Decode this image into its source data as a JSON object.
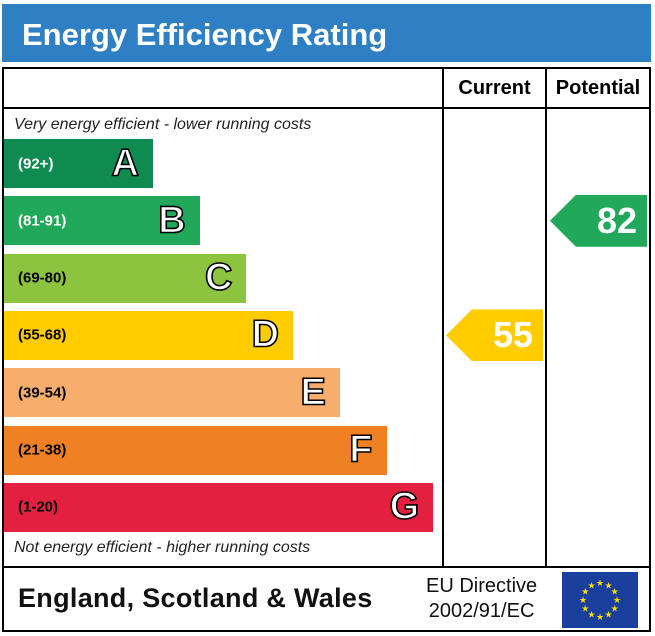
{
  "title": "Energy Efficiency Rating",
  "columns": {
    "current": "Current",
    "potential": "Potential"
  },
  "notes": {
    "top": "Very energy efficient - lower running costs",
    "bottom": "Not energy efficient - higher running costs"
  },
  "footer": {
    "region": "England, Scotland & Wales",
    "directive_line1": "EU Directive",
    "directive_line2": "2002/91/EC",
    "flag_icon": "eu-flag-icon"
  },
  "chart_data": {
    "type": "bar",
    "categories": [
      "A",
      "B",
      "C",
      "D",
      "E",
      "F",
      "G"
    ],
    "ranges": [
      "(92+)",
      "(81-91)",
      "(69-80)",
      "(55-68)",
      "(39-54)",
      "(21-38)",
      "(1-20)"
    ],
    "band_min": [
      92,
      81,
      69,
      55,
      39,
      21,
      1
    ],
    "band_colors": [
      "#0f8a50",
      "#22a85a",
      "#8cc43f",
      "#ffcc00",
      "#f7ad6b",
      "#ef8124",
      "#e3203f"
    ],
    "range_text_colors": [
      "#ffffff",
      "#ffffff",
      "#000000",
      "#000000",
      "#000000",
      "#000000",
      "#000000"
    ],
    "current": {
      "value": 55,
      "band": "D",
      "color": "#ffcc00"
    },
    "potential": {
      "value": 82,
      "band": "B",
      "color": "#22a85a"
    }
  }
}
